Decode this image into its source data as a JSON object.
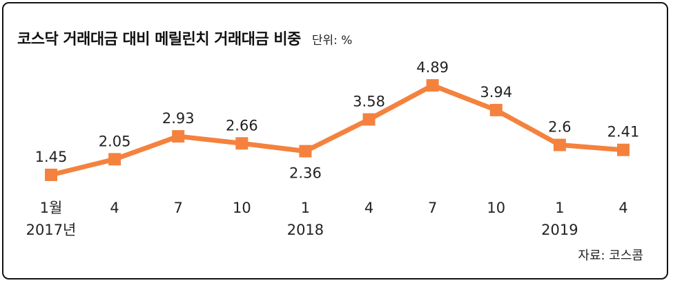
{
  "chart_data": {
    "type": "line",
    "title": "코스닥 거래대금 대비 메릴린치 거래대금 비중",
    "unit_label": "단위: %",
    "source": "자료: 코스콤",
    "categories": [
      "1월",
      "4",
      "7",
      "10",
      "1",
      "4",
      "7",
      "10",
      "1",
      "4"
    ],
    "year_labels": [
      "2017년",
      "",
      "",
      "",
      "2018",
      "",
      "",
      "",
      "2019",
      ""
    ],
    "values": [
      1.45,
      2.05,
      2.93,
      2.66,
      2.36,
      3.58,
      4.89,
      3.94,
      2.6,
      2.41
    ],
    "value_labels": [
      "1.45",
      "2.05",
      "2.93",
      "2.66",
      "2.36",
      "3.58",
      "4.89",
      "3.94",
      "2.6",
      "2.41"
    ],
    "label_position": [
      "above",
      "above",
      "above",
      "above",
      "below",
      "above",
      "above",
      "above",
      "above",
      "above"
    ],
    "grid": false,
    "legend": "none",
    "line_color": "#F4823E"
  }
}
